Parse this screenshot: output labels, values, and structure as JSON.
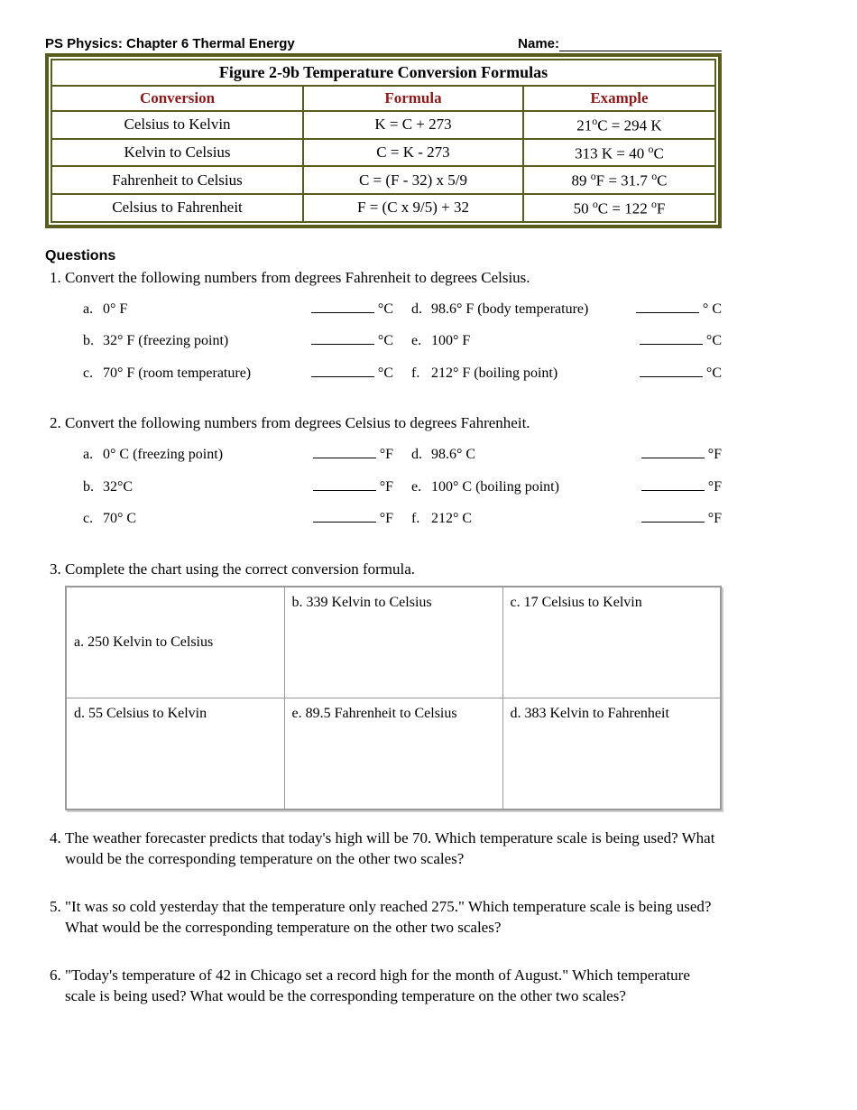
{
  "header": {
    "left": "PS Physics:  Chapter 6 Thermal Energy",
    "name_label": "Name:"
  },
  "table": {
    "title": "Figure 2-9b Temperature Conversion Formulas",
    "cols": [
      "Conversion",
      "Formula",
      "Example"
    ],
    "rows": [
      {
        "conversion": "Celsius to Kelvin",
        "formula": "K = C + 273",
        "example_html": "21°C = 294 K"
      },
      {
        "conversion": "Kelvin to Celsius",
        "formula": "C = K - 273",
        "example_html": "313 K = 40 °C"
      },
      {
        "conversion": "Fahrenheit to Celsius",
        "formula": "C = (F - 32) x 5/9",
        "example_html": "89 °F = 31.7 °C"
      },
      {
        "conversion": "Celsius to Fahrenheit",
        "formula": "F = (C x 9/5) + 32",
        "example_html": "50 °C = 122 °F"
      }
    ]
  },
  "questions_title": "Questions",
  "q1": {
    "prompt": "Convert the following numbers from degrees Fahrenheit to degrees Celsius.",
    "items": [
      {
        "l": "a.",
        "t": "0° F",
        "u": "°C"
      },
      {
        "l": "d.",
        "t": "98.6° F (body temperature)",
        "u": "° C"
      },
      {
        "l": "b.",
        "t": "32° F (freezing point)",
        "u": "°C"
      },
      {
        "l": "e.",
        "t": "100° F",
        "u": "°C"
      },
      {
        "l": "c.",
        "t": "70° F (room temperature)",
        "u": "°C"
      },
      {
        "l": "f.",
        "t": "212° F (boiling point)",
        "u": "°C"
      }
    ]
  },
  "q2": {
    "prompt": "Convert the following numbers from degrees Celsius to degrees Fahrenheit.",
    "items": [
      {
        "l": "a.",
        "t": "0° C (freezing point)",
        "u": "°F"
      },
      {
        "l": "d.",
        "t": "98.6° C",
        "u": "°F"
      },
      {
        "l": "b.",
        "t": "32°C",
        "u": "°F"
      },
      {
        "l": "e.",
        "t": "100° C (boiling point)",
        "u": "°F"
      },
      {
        "l": "c.",
        "t": "70° C",
        "u": "°F"
      },
      {
        "l": "f.",
        "t": "212° C",
        "u": "°F"
      }
    ]
  },
  "q3": {
    "prompt": "Complete the chart using the correct conversion formula.",
    "cells": [
      "a. 250 Kelvin to Celsius",
      "b.   339 Kelvin to Celsius",
      "c.   17 Celsius to Kelvin",
      "d.   55 Celsius to Kelvin",
      "e.   89.5 Fahrenheit to Celsius",
      "d.  383 Kelvin to Fahrenheit"
    ]
  },
  "q4": "The weather forecaster predicts that today's high will be 70. Which temperature scale is being used? What would be the corresponding temperature on the other two scales?",
  "q5": "\"It was so cold yesterday that the temperature only reached 275.\" Which temperature scale is being used? What would be the corresponding temperature on the other two scales?",
  "q6": "\"Today's temperature of 42 in Chicago set a record high for the month of August.\" Which temperature scale is being used? What would be the corresponding temperature on the other two scales?"
}
